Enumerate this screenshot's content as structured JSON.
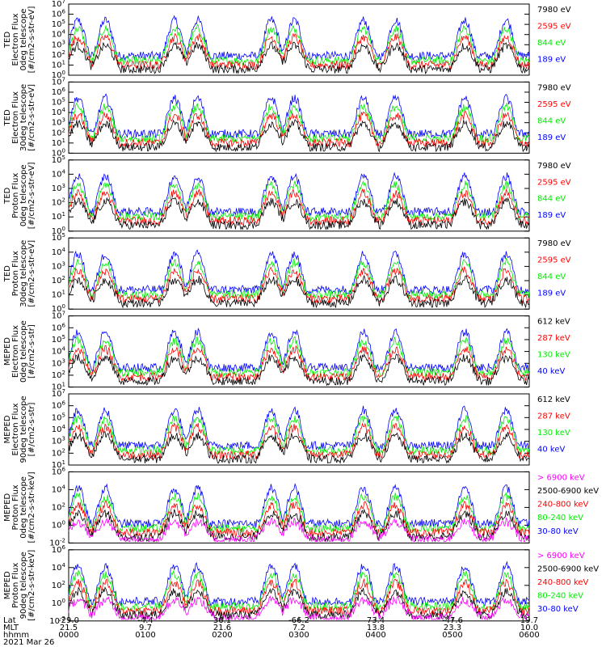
{
  "colors": {
    "black": "#000000",
    "red": "#ff0000",
    "green": "#00ee00",
    "blue": "#0000ff",
    "magenta": "#ff00ff"
  },
  "chart_data": [
    {
      "type": "line",
      "ylabel": [
        "TED",
        "Electron Flux",
        "0deg telescope",
        "[#/cm2-s-str-eV]"
      ],
      "ylim": [
        1,
        10000000
      ],
      "ytick_exponents": [
        0,
        1,
        2,
        3,
        4,
        5,
        6,
        7
      ],
      "yscale": "log",
      "series": [
        {
          "name": "7980 eV",
          "color": "black"
        },
        {
          "name": "2595 eV",
          "color": "red"
        },
        {
          "name": "844 eV",
          "color": "green"
        },
        {
          "name": "189 eV",
          "color": "blue"
        }
      ]
    },
    {
      "type": "line",
      "ylabel": [
        "TED",
        "Electron Flux",
        "30deg telescope",
        "[#/cm2-s-str-eV]"
      ],
      "ylim": [
        1,
        10000000
      ],
      "ytick_exponents": [
        0,
        1,
        2,
        3,
        4,
        5,
        6,
        7
      ],
      "yscale": "log",
      "series": [
        {
          "name": "7980 eV",
          "color": "black"
        },
        {
          "name": "2595 eV",
          "color": "red"
        },
        {
          "name": "844 eV",
          "color": "green"
        },
        {
          "name": "189 eV",
          "color": "blue"
        }
      ]
    },
    {
      "type": "line",
      "ylabel": [
        "TED",
        "Proton Flux",
        "0deg telescope",
        "[#/cm2-s-str-eV]"
      ],
      "ylim": [
        1,
        100000
      ],
      "ytick_exponents": [
        0,
        1,
        2,
        3,
        4,
        5
      ],
      "yscale": "log",
      "series": [
        {
          "name": "7980 eV",
          "color": "black"
        },
        {
          "name": "2595 eV",
          "color": "red"
        },
        {
          "name": "844 eV",
          "color": "green"
        },
        {
          "name": "189 eV",
          "color": "blue"
        }
      ]
    },
    {
      "type": "line",
      "ylabel": [
        "TED",
        "Proton Flux",
        "30deg telescope",
        "[#/cm2-s-str-eV]"
      ],
      "ylim": [
        1,
        100000
      ],
      "ytick_exponents": [
        0,
        1,
        2,
        3,
        4,
        5
      ],
      "yscale": "log",
      "series": [
        {
          "name": "7980 eV",
          "color": "black"
        },
        {
          "name": "2595 eV",
          "color": "red"
        },
        {
          "name": "844 eV",
          "color": "green"
        },
        {
          "name": "189 eV",
          "color": "blue"
        }
      ]
    },
    {
      "type": "line",
      "ylabel": [
        "MEPED",
        "Electron Flux",
        "0deg telescope",
        "[#/cm2-s-str]"
      ],
      "ylim": [
        10,
        10000000
      ],
      "ytick_exponents": [
        1,
        2,
        3,
        4,
        5,
        6,
        7
      ],
      "yscale": "log",
      "series": [
        {
          "name": "612 keV",
          "color": "black"
        },
        {
          "name": "287 keV",
          "color": "red"
        },
        {
          "name": "130 keV",
          "color": "green"
        },
        {
          "name": "40 keV",
          "color": "blue"
        }
      ]
    },
    {
      "type": "line",
      "ylabel": [
        "MEPED",
        "Electron Flux",
        "90deg telescope",
        "[#/cm2-s-str]"
      ],
      "ylim": [
        10,
        10000000
      ],
      "ytick_exponents": [
        1,
        2,
        3,
        4,
        5,
        6,
        7
      ],
      "yscale": "log",
      "series": [
        {
          "name": "612 keV",
          "color": "black"
        },
        {
          "name": "287 keV",
          "color": "red"
        },
        {
          "name": "130 keV",
          "color": "green"
        },
        {
          "name": "40 keV",
          "color": "blue"
        }
      ]
    },
    {
      "type": "line",
      "ylabel": [
        "MEPED",
        "Proton Flux",
        "0deg telescope",
        "[#/cm2-s-str-keV]"
      ],
      "ylim": [
        0.01,
        1000000
      ],
      "ytick_exponents": [
        -2,
        0,
        2,
        4,
        6
      ],
      "yscale": "log",
      "series": [
        {
          "name": "> 6900 keV",
          "color": "magenta"
        },
        {
          "name": "2500-6900 keV",
          "color": "black"
        },
        {
          "name": "240-800 keV",
          "color": "red"
        },
        {
          "name": "80-240 keV",
          "color": "green"
        },
        {
          "name": "30-80 keV",
          "color": "blue"
        }
      ]
    },
    {
      "type": "line",
      "ylabel": [
        "MEPED",
        "Proton Flux",
        "90deg telescope",
        "[#/cm2-s-str-keV]"
      ],
      "ylim": [
        0.01,
        1000000
      ],
      "ytick_exponents": [
        -2,
        0,
        2,
        4,
        6
      ],
      "yscale": "log",
      "series": [
        {
          "name": "> 6900 keV",
          "color": "magenta"
        },
        {
          "name": "2500-6900 keV",
          "color": "black"
        },
        {
          "name": "240-800 keV",
          "color": "red"
        },
        {
          "name": "80-240 keV",
          "color": "green"
        },
        {
          "name": "30-80 keV",
          "color": "blue"
        }
      ]
    }
  ],
  "x_axis": {
    "row_names": [
      "Lat",
      "MLT",
      "hhmm"
    ],
    "ticks": [
      {
        "lat": "-29.0",
        "mlt": "21.5",
        "hhmm": "0000"
      },
      {
        "lat": "-4.4",
        "mlt": "9.7",
        "hhmm": "0100"
      },
      {
        "lat": "36.1",
        "mlt": "21.6",
        "hhmm": "0200"
      },
      {
        "lat": "-66.2",
        "mlt": "7.2",
        "hhmm": "0300"
      },
      {
        "lat": "73.4",
        "mlt": "13.8",
        "hhmm": "0400"
      },
      {
        "lat": "-47.6",
        "mlt": "23.3",
        "hhmm": "0500"
      },
      {
        "lat": "19.7",
        "mlt": "10.0",
        "hhmm": "0600"
      }
    ],
    "date": "2021 Mar 26"
  }
}
